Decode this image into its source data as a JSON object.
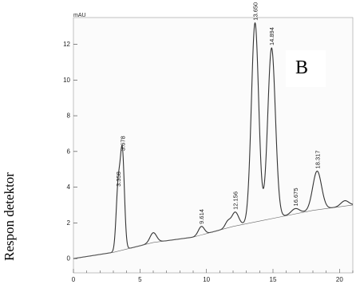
{
  "ylabel": "Respon detektor",
  "panel_label": "B",
  "unit": "mAU",
  "chart_data": {
    "type": "line",
    "xlim": [
      0,
      21
    ],
    "ylim": [
      -0.8,
      13.5
    ],
    "xticks": [
      0,
      5,
      10,
      15,
      20
    ],
    "yticks": [
      0,
      2,
      4,
      6,
      8,
      10,
      12
    ],
    "grid": false,
    "baseline": [
      [
        0,
        0
      ],
      [
        3,
        0.35
      ],
      [
        6,
        0.9
      ],
      [
        9,
        1.2
      ],
      [
        12,
        1.8
      ],
      [
        14,
        2.1
      ],
      [
        16,
        2.4
      ],
      [
        18,
        2.7
      ],
      [
        21,
        3.0
      ]
    ],
    "peaks": [
      {
        "label": "3.358",
        "x": 3.358,
        "y": 3.9
      },
      {
        "label": "3.678",
        "x": 3.678,
        "y": 5.9
      },
      {
        "label": "9.614",
        "x": 9.614,
        "y": 1.8
      },
      {
        "label": "12.156",
        "x": 12.156,
        "y": 2.6
      },
      {
        "label": "13.650",
        "x": 13.65,
        "y": 13.2
      },
      {
        "label": "14.894",
        "x": 14.894,
        "y": 11.8
      },
      {
        "label": "16.675",
        "x": 16.675,
        "y": 2.8
      },
      {
        "label": "18.317",
        "x": 18.317,
        "y": 4.9
      }
    ],
    "line_color": "#333333"
  }
}
